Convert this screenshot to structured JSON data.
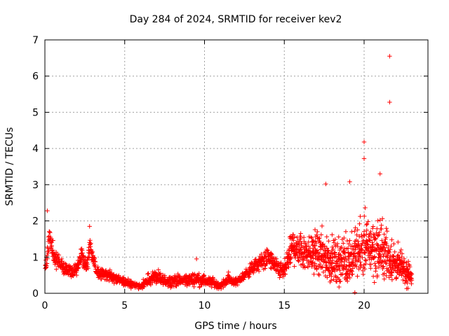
{
  "chart_data": {
    "type": "scatter",
    "title": "Day 284 of 2024, SRMTID for receiver kev2",
    "xlabel": "GPS time / hours",
    "ylabel": "SRMTID / TECUs",
    "xlim": [
      0,
      24
    ],
    "ylim": [
      0,
      7
    ],
    "x_ticks": [
      0,
      5,
      10,
      15,
      20
    ],
    "y_ticks": [
      0,
      1,
      2,
      3,
      4,
      5,
      6,
      7
    ],
    "grid": true,
    "marker": "plus",
    "colors": {
      "series": "#ff0000",
      "axis": "#000000",
      "grid": "#a0a0a0",
      "text": "#000000",
      "background": "#ffffff"
    },
    "notable_points": [
      {
        "x": 21.6,
        "y": 6.55
      },
      {
        "x": 21.6,
        "y": 5.28
      },
      {
        "x": 20.0,
        "y": 4.18
      },
      {
        "x": 20.0,
        "y": 3.72
      },
      {
        "x": 21.0,
        "y": 3.3
      },
      {
        "x": 19.1,
        "y": 3.08
      },
      {
        "x": 17.6,
        "y": 3.02
      },
      {
        "x": 0.15,
        "y": 2.28
      },
      {
        "x": 2.8,
        "y": 1.85
      },
      {
        "x": 9.5,
        "y": 0.95
      }
    ],
    "envelope": [
      {
        "x": 0.0,
        "center": 0.55,
        "spread": 0.22
      },
      {
        "x": 0.3,
        "center": 1.55,
        "spread": 0.5
      },
      {
        "x": 0.6,
        "center": 1.0,
        "spread": 0.35
      },
      {
        "x": 1.0,
        "center": 0.8,
        "spread": 0.3
      },
      {
        "x": 1.5,
        "center": 0.6,
        "spread": 0.25
      },
      {
        "x": 2.0,
        "center": 0.6,
        "spread": 0.25
      },
      {
        "x": 2.3,
        "center": 1.1,
        "spread": 0.38
      },
      {
        "x": 2.6,
        "center": 0.7,
        "spread": 0.3
      },
      {
        "x": 2.85,
        "center": 1.3,
        "spread": 0.4
      },
      {
        "x": 3.2,
        "center": 0.6,
        "spread": 0.25
      },
      {
        "x": 4.0,
        "center": 0.5,
        "spread": 0.2
      },
      {
        "x": 5.0,
        "center": 0.3,
        "spread": 0.15
      },
      {
        "x": 6.0,
        "center": 0.2,
        "spread": 0.12
      },
      {
        "x": 6.8,
        "center": 0.45,
        "spread": 0.3
      },
      {
        "x": 7.5,
        "center": 0.35,
        "spread": 0.22
      },
      {
        "x": 8.5,
        "center": 0.35,
        "spread": 0.22
      },
      {
        "x": 9.5,
        "center": 0.4,
        "spread": 0.25
      },
      {
        "x": 10.5,
        "center": 0.3,
        "spread": 0.18
      },
      {
        "x": 11.0,
        "center": 0.2,
        "spread": 0.12
      },
      {
        "x": 11.5,
        "center": 0.4,
        "spread": 0.22
      },
      {
        "x": 12.0,
        "center": 0.3,
        "spread": 0.15
      },
      {
        "x": 13.0,
        "center": 0.7,
        "spread": 0.25
      },
      {
        "x": 14.0,
        "center": 1.0,
        "spread": 0.4
      },
      {
        "x": 14.5,
        "center": 0.7,
        "spread": 0.35
      },
      {
        "x": 15.0,
        "center": 0.6,
        "spread": 0.35
      },
      {
        "x": 15.5,
        "center": 1.3,
        "spread": 0.7
      },
      {
        "x": 16.0,
        "center": 1.2,
        "spread": 0.7
      },
      {
        "x": 17.0,
        "center": 1.1,
        "spread": 0.7
      },
      {
        "x": 18.0,
        "center": 0.9,
        "spread": 0.75
      },
      {
        "x": 19.0,
        "center": 0.9,
        "spread": 0.85
      },
      {
        "x": 20.0,
        "center": 1.3,
        "spread": 1.0
      },
      {
        "x": 21.0,
        "center": 1.2,
        "spread": 1.0
      },
      {
        "x": 22.0,
        "center": 0.8,
        "spread": 0.6
      },
      {
        "x": 23.0,
        "center": 0.5,
        "spread": 0.35
      }
    ]
  }
}
